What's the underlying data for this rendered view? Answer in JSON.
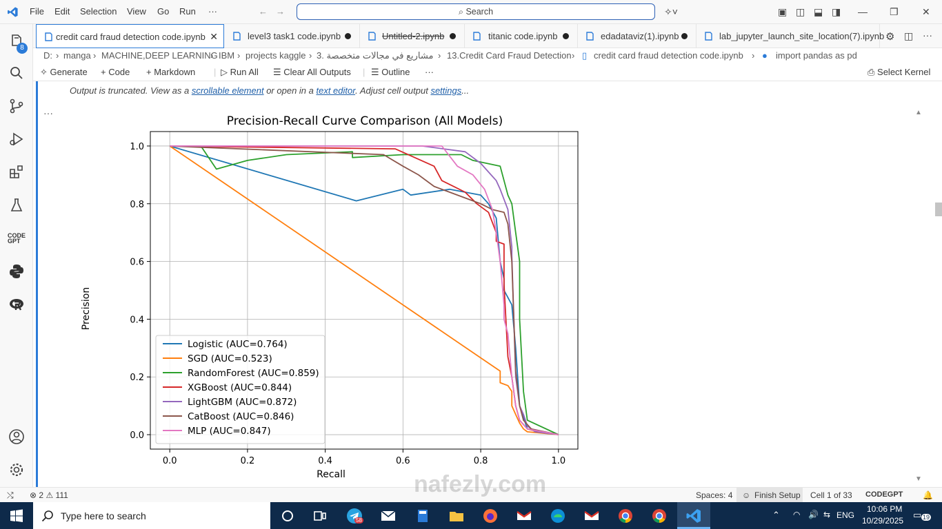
{
  "menu": [
    "File",
    "Edit",
    "Selection",
    "View",
    "Go",
    "Run",
    "···"
  ],
  "search": {
    "label": "Search"
  },
  "activity": {
    "explorer_badge": "8"
  },
  "tabs": [
    {
      "label": "credit card fraud detection code.ipynb",
      "active": true
    },
    {
      "label": "level3 task1 code.ipynb"
    },
    {
      "label": "Untitled-2.ipynb"
    },
    {
      "label": "titanic code.ipynb"
    },
    {
      "label": "edadataviz(1).ipynb"
    },
    {
      "label": "lab_jupyter_launch_site_location(7).ipynb"
    }
  ],
  "breadcrumb": [
    "D:",
    "manga",
    "MACHINE,DEEP LEARNING",
    "IBM",
    "projects kaggle",
    "3. مشاريع في مجالات متخصصة",
    "13.Credit Card Fraud Detection",
    "credit card fraud detection code.ipynb",
    "import pandas as pd"
  ],
  "toolbar": {
    "generate": "Generate",
    "code": "Code",
    "markdown": "Markdown",
    "run_all": "Run All",
    "clear": "Clear All Outputs",
    "outline": "Outline",
    "more": "···",
    "kernel": "Select Kernel"
  },
  "truncated": {
    "prefix": "Output is truncated. View as a ",
    "link1": "scrollable element",
    "mid": " or open in a ",
    "link2": "text editor",
    "mid2": ". Adjust cell output ",
    "link3": "settings",
    "suffix": "..."
  },
  "cell_more": "···",
  "chart_data": {
    "type": "line",
    "title": "Precision-Recall Curve Comparison (All Models)",
    "xlabel": "Recall",
    "ylabel": "Precision",
    "xlim": [
      -0.05,
      1.05
    ],
    "ylim": [
      -0.05,
      1.05
    ],
    "xticks": [
      "0.0",
      "0.2",
      "0.4",
      "0.6",
      "0.8",
      "1.0"
    ],
    "yticks": [
      "0.0",
      "0.2",
      "0.4",
      "0.6",
      "0.8",
      "1.0"
    ],
    "grid": true,
    "legend_position": "lower-left",
    "series": [
      {
        "name": "Logistic (AUC=0.764)",
        "color": "#1f77b4",
        "x": [
          0,
          0.48,
          0.6,
          0.62,
          0.72,
          0.8,
          0.82,
          0.84,
          0.85,
          0.86,
          0.86,
          0.88,
          0.89,
          0.9,
          0.92,
          1.0
        ],
        "y": [
          1.0,
          0.81,
          0.85,
          0.83,
          0.85,
          0.83,
          0.8,
          0.75,
          0.6,
          0.54,
          0.5,
          0.45,
          0.3,
          0.1,
          0.02,
          0.0
        ]
      },
      {
        "name": "SGD (AUC=0.523)",
        "color": "#ff7f0e",
        "x": [
          0,
          0.85,
          0.85,
          0.87,
          0.88,
          0.88,
          0.89,
          0.9,
          0.91,
          0.92,
          1.0
        ],
        "y": [
          1.0,
          0.22,
          0.18,
          0.17,
          0.15,
          0.1,
          0.07,
          0.04,
          0.02,
          0.01,
          0.0
        ]
      },
      {
        "name": "RandomForest (AUC=0.859)",
        "color": "#2ca02c",
        "x": [
          0,
          0.08,
          0.12,
          0.2,
          0.3,
          0.47,
          0.47,
          0.6,
          0.75,
          0.78,
          0.85,
          0.86,
          0.87,
          0.88,
          0.89,
          0.9,
          0.9,
          0.91,
          0.92,
          1.0
        ],
        "y": [
          1.0,
          1.0,
          0.92,
          0.95,
          0.97,
          0.98,
          0.96,
          0.97,
          0.97,
          0.95,
          0.93,
          0.88,
          0.83,
          0.8,
          0.7,
          0.6,
          0.4,
          0.15,
          0.05,
          0.0
        ]
      },
      {
        "name": "XGBoost (AUC=0.844)",
        "color": "#d62728",
        "x": [
          0,
          0.58,
          0.68,
          0.7,
          0.73,
          0.76,
          0.79,
          0.82,
          0.84,
          0.84,
          0.86,
          0.86,
          0.87,
          0.88,
          0.89,
          0.9,
          0.92,
          0.95,
          1.0
        ],
        "y": [
          1.0,
          0.99,
          0.93,
          0.88,
          0.86,
          0.84,
          0.8,
          0.77,
          0.7,
          0.67,
          0.66,
          0.52,
          0.27,
          0.2,
          0.1,
          0.05,
          0.02,
          0.01,
          0.0
        ]
      },
      {
        "name": "LightGBM (AUC=0.872)",
        "color": "#9467bd",
        "x": [
          0,
          0.65,
          0.76,
          0.8,
          0.84,
          0.85,
          0.87,
          0.88,
          0.88,
          0.89,
          0.9,
          0.91,
          0.92,
          0.94,
          1.0
        ],
        "y": [
          1.0,
          1.0,
          0.98,
          0.94,
          0.88,
          0.85,
          0.78,
          0.65,
          0.62,
          0.2,
          0.1,
          0.07,
          0.03,
          0.01,
          0.0
        ]
      },
      {
        "name": "CatBoost (AUC=0.846)",
        "color": "#8c564b",
        "x": [
          0,
          0.55,
          0.6,
          0.64,
          0.68,
          0.72,
          0.76,
          0.8,
          0.83,
          0.86,
          0.87,
          0.88,
          0.89,
          0.9,
          0.91,
          0.93,
          1.0
        ],
        "y": [
          1.0,
          0.97,
          0.93,
          0.9,
          0.86,
          0.84,
          0.82,
          0.8,
          0.78,
          0.77,
          0.73,
          0.6,
          0.22,
          0.1,
          0.05,
          0.02,
          0.0
        ]
      },
      {
        "name": "MLP (AUC=0.847)",
        "color": "#e377c2",
        "x": [
          0,
          0.7,
          0.74,
          0.78,
          0.81,
          0.83,
          0.84,
          0.85,
          0.86,
          0.86,
          0.87,
          0.88,
          0.89,
          0.9,
          0.92,
          1.0
        ],
        "y": [
          1.0,
          1.0,
          0.93,
          0.9,
          0.85,
          0.78,
          0.7,
          0.6,
          0.45,
          0.4,
          0.35,
          0.2,
          0.1,
          0.05,
          0.02,
          0.0
        ]
      }
    ]
  },
  "status": {
    "errors": "2",
    "warnings": "111",
    "spaces": "Spaces: 4",
    "finish": "Finish Setup",
    "cell": "Cell 1 of 33",
    "codegpt": "CODEGPT"
  },
  "taskbar": {
    "search": "Type here to search",
    "lang": "ENG",
    "time": "10:06 PM",
    "date": "10/29/2025",
    "notif": "19",
    "telegram_badge": "58"
  },
  "watermark": "nafezly.com"
}
